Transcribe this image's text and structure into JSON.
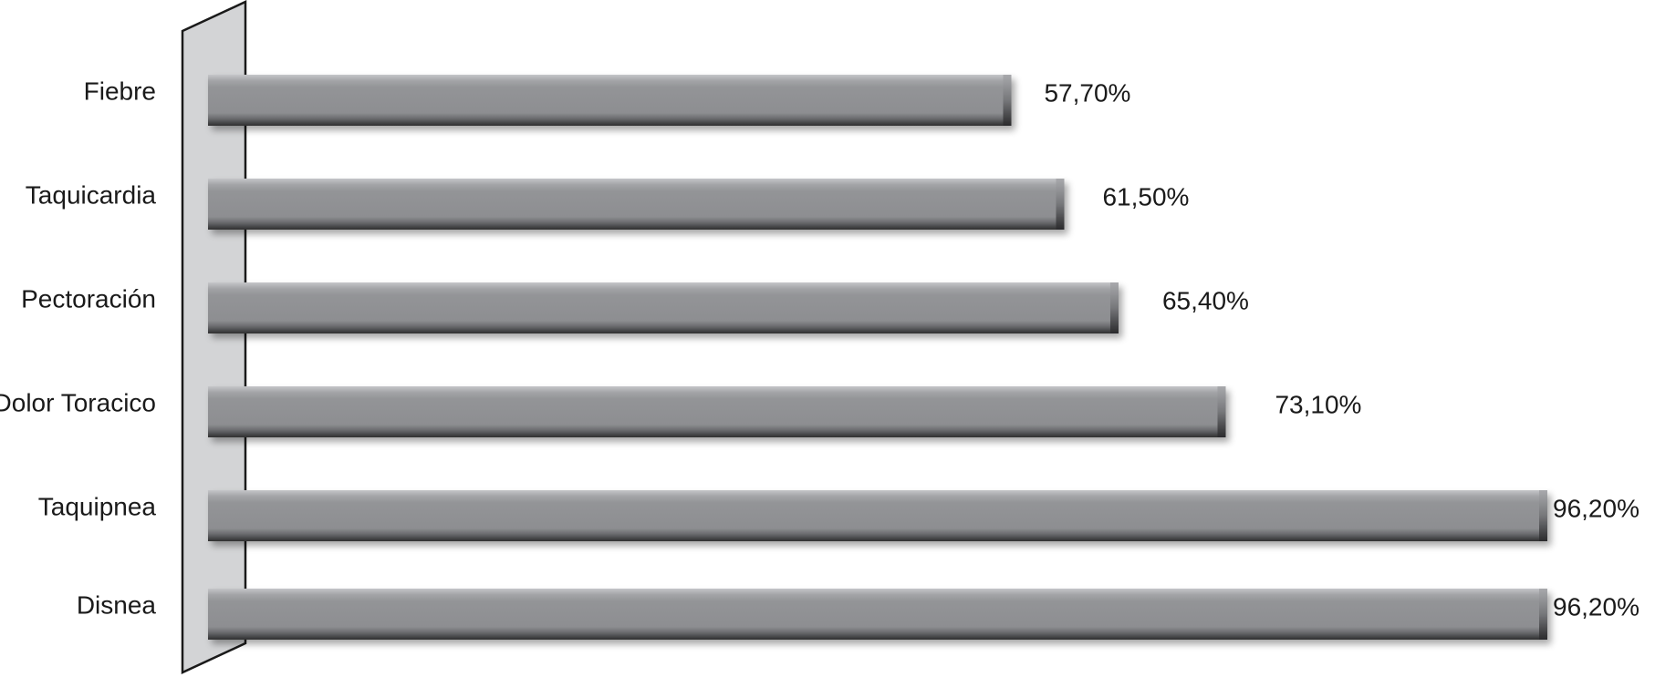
{
  "chart_data": {
    "type": "bar",
    "orientation": "horizontal",
    "categories": [
      "Fiebre",
      "Taquicardia",
      "Pectoración",
      "Dolor Toracico",
      "Taquipnea",
      "Disnea"
    ],
    "values": [
      57.7,
      61.5,
      65.4,
      73.1,
      96.2,
      96.2
    ],
    "value_labels": [
      "57,70%",
      "61,50%",
      "65,40%",
      "73,10%",
      "96,20%",
      "96,20%"
    ],
    "title": "",
    "xlabel": "",
    "ylabel": "",
    "xlim": [
      0,
      100
    ],
    "grid": false,
    "legend": "none",
    "colors": {
      "bar": "#909194",
      "bar_highlight": "#b9babd",
      "bar_shadow": "#3a3a3c",
      "wall": "#d3d4d6",
      "wall_edge": "#1a1a1a"
    }
  }
}
